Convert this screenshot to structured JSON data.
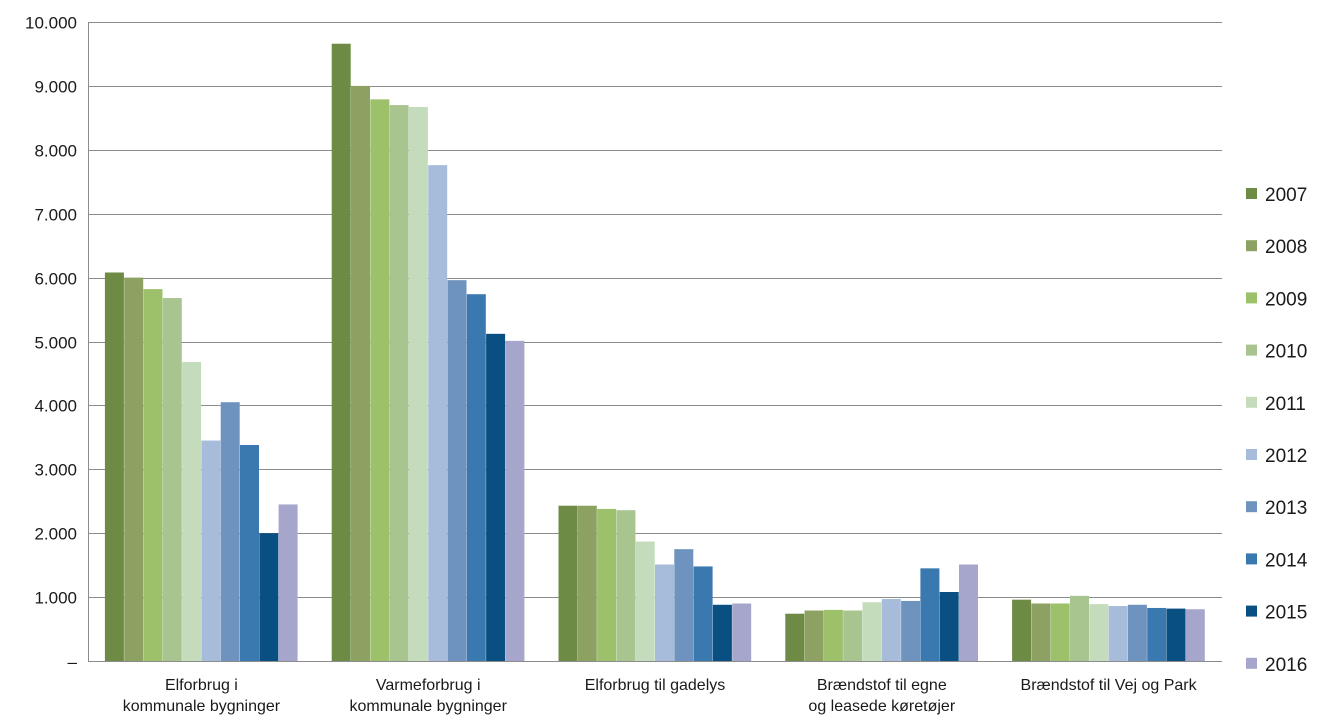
{
  "chart_data": {
    "type": "bar",
    "title": "",
    "xlabel": "",
    "ylabel": "",
    "ylim": [
      0,
      10000
    ],
    "grid": true,
    "legend_position": "right",
    "yticks": [
      0,
      1000,
      2000,
      3000,
      4000,
      5000,
      6000,
      7000,
      8000,
      9000,
      10000
    ],
    "ytick_labels": [
      "–",
      "1.000",
      "2.000",
      "3.000",
      "4.000",
      "5.000",
      "6.000",
      "7.000",
      "8.000",
      "9.000",
      "10.000"
    ],
    "categories": [
      [
        "Elforbrug i",
        "kommunale bygninger"
      ],
      [
        "Varmeforbrug i",
        "kommunale bygninger"
      ],
      [
        "Elforbrug til gadelys"
      ],
      [
        "Brændstof til egne",
        "og leasede køretøjer"
      ],
      [
        "Brændstof til Vej og Park"
      ]
    ],
    "series": [
      {
        "name": "2007",
        "color": "#6e8b45",
        "values": [
          6080,
          9660,
          2430,
          740,
          960
        ]
      },
      {
        "name": "2008",
        "color": "#8da262",
        "values": [
          6000,
          9000,
          2430,
          790,
          900
        ]
      },
      {
        "name": "2009",
        "color": "#9dc16a",
        "values": [
          5820,
          8790,
          2380,
          800,
          900
        ]
      },
      {
        "name": "2010",
        "color": "#a8c48f",
        "values": [
          5680,
          8700,
          2360,
          790,
          1020
        ]
      },
      {
        "name": "2011",
        "color": "#c5dcbc",
        "values": [
          4680,
          8670,
          1870,
          920,
          890
        ]
      },
      {
        "name": "2012",
        "color": "#a6bcda",
        "values": [
          3450,
          7760,
          1510,
          970,
          860
        ]
      },
      {
        "name": "2013",
        "color": "#6f93bf",
        "values": [
          4050,
          5960,
          1750,
          940,
          880
        ]
      },
      {
        "name": "2014",
        "color": "#3a78b0",
        "values": [
          3380,
          5740,
          1480,
          1450,
          830
        ]
      },
      {
        "name": "2015",
        "color": "#0a4f82",
        "values": [
          2000,
          5120,
          880,
          1080,
          820
        ]
      },
      {
        "name": "2016",
        "color": "#a6a6cc",
        "values": [
          2450,
          5010,
          900,
          1510,
          810
        ]
      }
    ]
  }
}
